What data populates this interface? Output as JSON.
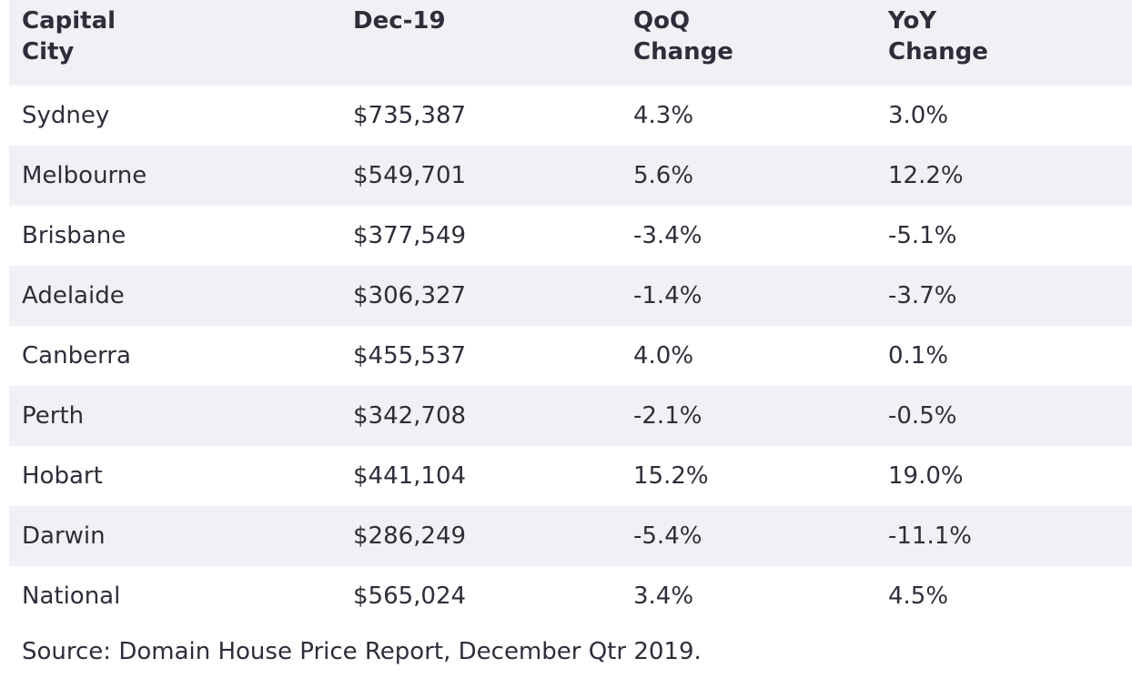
{
  "table": {
    "header": [
      "Capital City",
      "Dec-19",
      "QoQ Change",
      "YoY Change"
    ],
    "rows": [
      [
        "Sydney",
        "$735,387",
        "4.3%",
        "3.0%"
      ],
      [
        "Melbourne",
        "$549,701",
        "5.6%",
        "12.2%"
      ],
      [
        "Brisbane",
        "$377,549",
        "-3.4%",
        "-5.1%"
      ],
      [
        "Adelaide",
        "$306,327",
        "-1.4%",
        "-3.7%"
      ],
      [
        "Canberra",
        "$455,537",
        "4.0%",
        "0.1%"
      ],
      [
        "Perth",
        "$342,708",
        "-2.1%",
        "-0.5%"
      ],
      [
        "Hobart",
        "$441,104",
        "15.2%",
        "19.0%"
      ],
      [
        "Darwin",
        "$286,249",
        "-5.4%",
        "-11.1%"
      ],
      [
        "National",
        "$565,024",
        "3.4%",
        "4.5%"
      ]
    ]
  },
  "source": "Source: Domain House Price Report, December Qtr 2019."
}
